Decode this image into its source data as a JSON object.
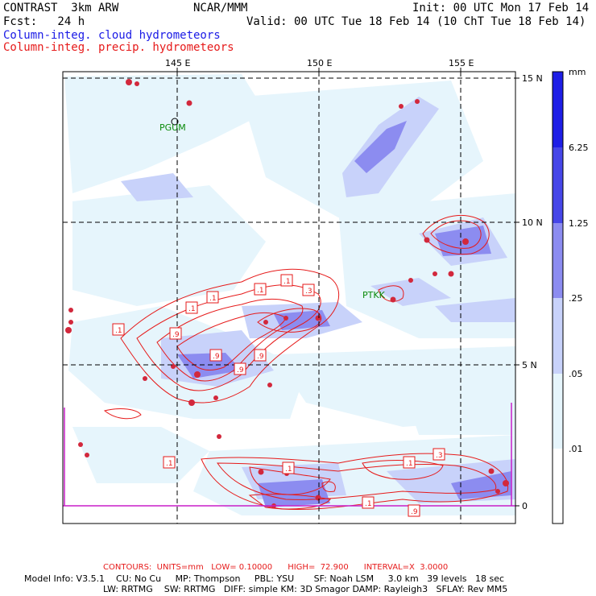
{
  "header": {
    "model": "CONTRAST  3km ARW",
    "org": "NCAR/MMM",
    "init": "Init: 00 UTC Mon 17 Feb 14",
    "fcst": "Fcst:   24 h",
    "valid": "Valid: 00 UTC Tue 18 Feb 14 (10 ChT Tue 18 Feb 14)",
    "field_cloud": "Column-integ. cloud hydrometeors",
    "field_precip": "Column-integ. precip. hydrometeors"
  },
  "axes": {
    "lon_labels": [
      "145 E",
      "150 E",
      "155 E"
    ],
    "lat_labels": [
      "15 N",
      "10 N",
      "5 N",
      "0"
    ]
  },
  "stations": [
    {
      "name": "PGUM",
      "lon": 144.8,
      "lat": 13.5
    },
    {
      "name": "PTKK",
      "lon": 151.8,
      "lat": 7.4
    }
  ],
  "contour_labels": [
    ".1",
    ".1",
    ".1",
    ".3",
    ".1",
    ".1",
    ".9",
    ".9",
    ".9",
    ".1",
    ".1",
    ".9",
    ".9",
    ".3",
    ".1",
    ".1"
  ],
  "colorbar": {
    "unit": "mm",
    "levels": [
      "6.25",
      "1.25",
      ".25",
      ".05",
      ".01"
    ],
    "colors": [
      "#1e1ee6",
      "#4646e8",
      "#8c8cf0",
      "#c8d2fa",
      "#e6f5fc",
      "#ffffff"
    ]
  },
  "footer": {
    "contours": "CONTOURS:  UNITS=mm   LOW= 0.10000      HIGH=  72.900      INTERVAL=X  3.0000",
    "model_info_1": "Model Info: V3.5.1    CU: No Cu     MP: Thompson     PBL: YSU       SF: Noah LSM     3.0 km   39 levels   18 sec",
    "model_info_2": "LW: RRTMG    SW: RRTMG   DIFF: simple KM: 3D Smagor DAMP: Rayleigh3   SFLAY: Rev MM5"
  }
}
